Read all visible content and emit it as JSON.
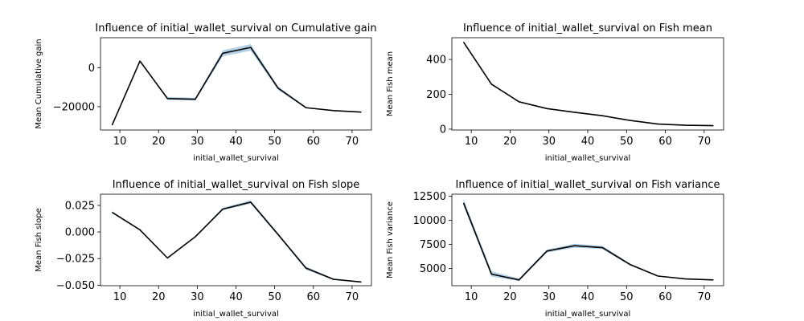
{
  "chart_data": [
    {
      "type": "line",
      "title": "Influence of initial_wallet_survival on Cumulative gain",
      "xlabel": "initial_wallet_survival",
      "ylabel": "Mean Cumulative gain",
      "x": [
        8,
        15.2,
        22.3,
        29.5,
        36.6,
        43.8,
        50.9,
        58.1,
        65.2,
        72.4
      ],
      "y": [
        -29500,
        3500,
        -15800,
        -16200,
        7500,
        10500,
        -10500,
        -20500,
        -22000,
        -22800
      ],
      "band_lower": [
        -29500,
        3500,
        -16500,
        -16800,
        6000,
        8800,
        -11500,
        -20800,
        -22200,
        -23000
      ],
      "band_upper": [
        -29500,
        3500,
        -15000,
        -15400,
        9000,
        12200,
        -9600,
        -20200,
        -21800,
        -22600
      ],
      "xlim": [
        5,
        75
      ],
      "ylim": [
        -32000,
        15500
      ],
      "xticks": [
        10,
        20,
        30,
        40,
        50,
        60,
        70
      ],
      "yticks": [
        0,
        -20000
      ],
      "ytick_labels": [
        "0",
        "−20000"
      ],
      "line_color": "#000000",
      "band_color": "#1f77b4"
    },
    {
      "type": "line",
      "title": "Influence of initial_wallet_survival on Fish mean",
      "xlabel": "initial_wallet_survival",
      "ylabel": "Mean Fish mean",
      "x": [
        8,
        15.2,
        22.3,
        29.5,
        36.6,
        43.8,
        50.9,
        58.1,
        65.2,
        72.4
      ],
      "y": [
        500,
        258,
        157,
        118,
        97,
        77,
        50,
        29,
        22,
        20
      ],
      "band_lower": [
        498,
        255,
        155,
        116,
        95,
        75,
        49,
        28,
        21,
        19
      ],
      "band_upper": [
        502,
        261,
        159,
        120,
        99,
        79,
        51,
        30,
        23,
        21
      ],
      "xlim": [
        5,
        75
      ],
      "ylim": [
        -5,
        525
      ],
      "xticks": [
        10,
        20,
        30,
        40,
        50,
        60,
        70
      ],
      "yticks": [
        0,
        200,
        400
      ],
      "ytick_labels": [
        "0",
        "200",
        "400"
      ],
      "line_color": "#000000",
      "band_color": "#1f77b4"
    },
    {
      "type": "line",
      "title": "Influence of initial_wallet_survival on Fish slope",
      "xlabel": "initial_wallet_survival",
      "ylabel": "Mean Fish slope",
      "x": [
        8,
        15.2,
        22.3,
        29.5,
        36.6,
        43.8,
        50.9,
        58.1,
        65.2,
        72.4
      ],
      "y": [
        0.0185,
        0.002,
        -0.0245,
        -0.0045,
        0.0215,
        0.028,
        -0.0025,
        -0.034,
        -0.0445,
        -0.047
      ],
      "band_lower": [
        0.0175,
        0.0015,
        -0.025,
        -0.005,
        0.0205,
        0.0265,
        -0.0035,
        -0.0355,
        -0.0452,
        -0.0475
      ],
      "band_upper": [
        0.0195,
        0.0025,
        -0.024,
        -0.004,
        0.0228,
        0.0298,
        -0.0012,
        -0.0325,
        -0.0438,
        -0.0465
      ],
      "xlim": [
        5,
        75
      ],
      "ylim": [
        -0.0505,
        0.0355
      ],
      "xticks": [
        10,
        20,
        30,
        40,
        50,
        60,
        70
      ],
      "yticks": [
        0.025,
        0.0,
        -0.025,
        -0.05
      ],
      "ytick_labels": [
        "0.025",
        "0.000",
        "−0.025",
        "−0.050"
      ],
      "line_color": "#000000",
      "band_color": "#1f77b4"
    },
    {
      "type": "line",
      "title": "Influence of initial_wallet_survival on Fish variance",
      "xlabel": "initial_wallet_survival",
      "ylabel": "Mean Fish variance",
      "x": [
        8,
        15.2,
        22.3,
        29.5,
        36.6,
        43.8,
        50.9,
        58.1,
        65.2,
        72.4
      ],
      "y": [
        11800,
        4400,
        3800,
        6800,
        7350,
        7150,
        5400,
        4200,
        3900,
        3800
      ],
      "band_lower": [
        11500,
        4150,
        3680,
        6650,
        7150,
        7000,
        5300,
        4170,
        3880,
        3780
      ],
      "band_upper": [
        12200,
        4700,
        3950,
        6950,
        7550,
        7350,
        5500,
        4230,
        3920,
        3820
      ],
      "xlim": [
        5,
        75
      ],
      "ylim": [
        3200,
        12700
      ],
      "xticks": [
        10,
        20,
        30,
        40,
        50,
        60,
        70
      ],
      "yticks": [
        12500,
        10000,
        7500,
        5000
      ],
      "ytick_labels": [
        "12500",
        "10000",
        "7500",
        "5000"
      ],
      "line_color": "#000000",
      "band_color": "#1f77b4"
    }
  ]
}
